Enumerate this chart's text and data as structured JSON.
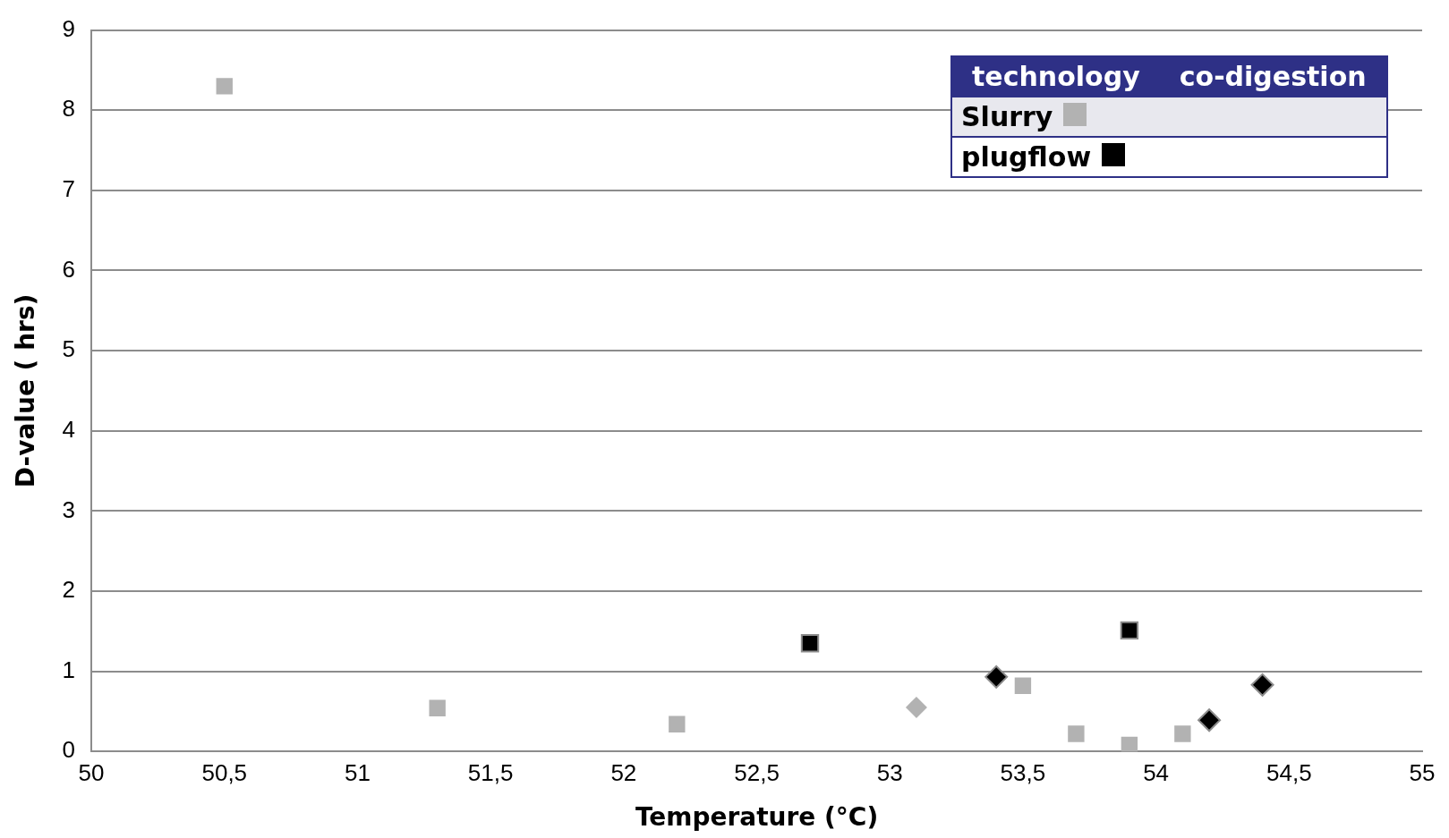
{
  "chart_data": {
    "type": "scatter",
    "xlabel": "Temperature (°C)",
    "ylabel": "D-value ( hrs)",
    "legend_title": "technology",
    "annotations": [
      "co-digestion"
    ],
    "xlim": [
      50,
      55
    ],
    "xticks": [
      50,
      {
        "value": 50.5,
        "label": "50,5"
      },
      51,
      {
        "value": 51.5,
        "label": "51,5"
      },
      52,
      {
        "value": 52.5,
        "label": "52,5"
      },
      53,
      {
        "value": 53.5,
        "label": "53,5"
      },
      54,
      {
        "value": 54.5,
        "label": "54,5"
      },
      55
    ],
    "ylim": [
      0,
      9
    ],
    "yticks": [
      0,
      1,
      2,
      3,
      4,
      5,
      6,
      7,
      8,
      9
    ],
    "grid": "y",
    "legend": "top right",
    "series": [
      {
        "name": "Slurry",
        "color": "#b2b2b2",
        "marker": "square",
        "x": [
          50.5,
          51.3,
          52.2,
          53.5,
          53.7,
          53.9,
          54.1
        ],
        "values": [
          8.3,
          0.54,
          0.34,
          0.82,
          0.22,
          0.08,
          0.22
        ]
      },
      {
        "name": "plugflow",
        "color": "#000000",
        "marker": "square",
        "x": [
          52.7,
          53.9
        ],
        "values": [
          1.35,
          1.51
        ]
      },
      {
        "color": "#b2b2b2",
        "marker": "diamond",
        "x": [
          53.1
        ],
        "values": [
          0.55
        ]
      },
      {
        "color": "#000000",
        "marker": "diamond",
        "x": [
          53.4,
          54.2,
          54.4
        ],
        "values": [
          0.93,
          0.39,
          0.83
        ]
      }
    ]
  }
}
